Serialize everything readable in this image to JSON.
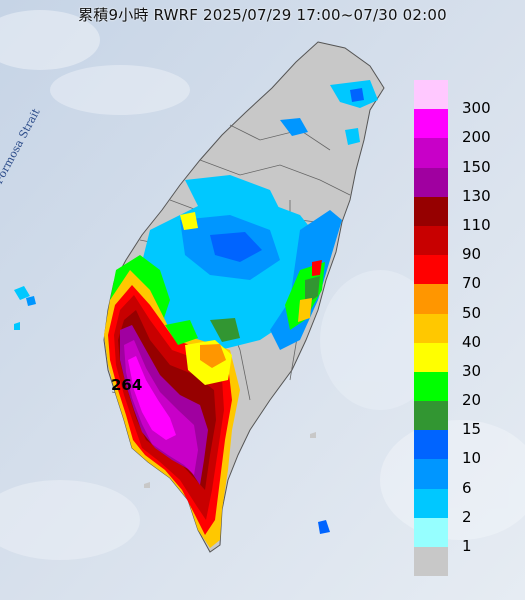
{
  "title": "累積9小時 RWRF 2025/07/29 17:00~07/30 02:00",
  "strait_label": "Formosa Strait",
  "max_value_label": "264",
  "legend": [
    {
      "label": "300",
      "color": "#ffc8ff"
    },
    {
      "label": "200",
      "color": "#ff00ff"
    },
    {
      "label": "150",
      "color": "#c800c8"
    },
    {
      "label": "130",
      "color": "#a000a0"
    },
    {
      "label": "110",
      "color": "#960000"
    },
    {
      "label": "90",
      "color": "#c80000"
    },
    {
      "label": "70",
      "color": "#ff0000"
    },
    {
      "label": "50",
      "color": "#ff9600"
    },
    {
      "label": "40",
      "color": "#ffc800"
    },
    {
      "label": "30",
      "color": "#ffff00"
    },
    {
      "label": "20",
      "color": "#00ff00"
    },
    {
      "label": "15",
      "color": "#329632"
    },
    {
      "label": "10",
      "color": "#0064ff"
    },
    {
      "label": "6",
      "color": "#0096ff"
    },
    {
      "label": "2",
      "color": "#00c8ff"
    },
    {
      "label": "1",
      "color": "#96ffff"
    },
    {
      "label": "",
      "color": "#c8c8c8"
    }
  ]
}
